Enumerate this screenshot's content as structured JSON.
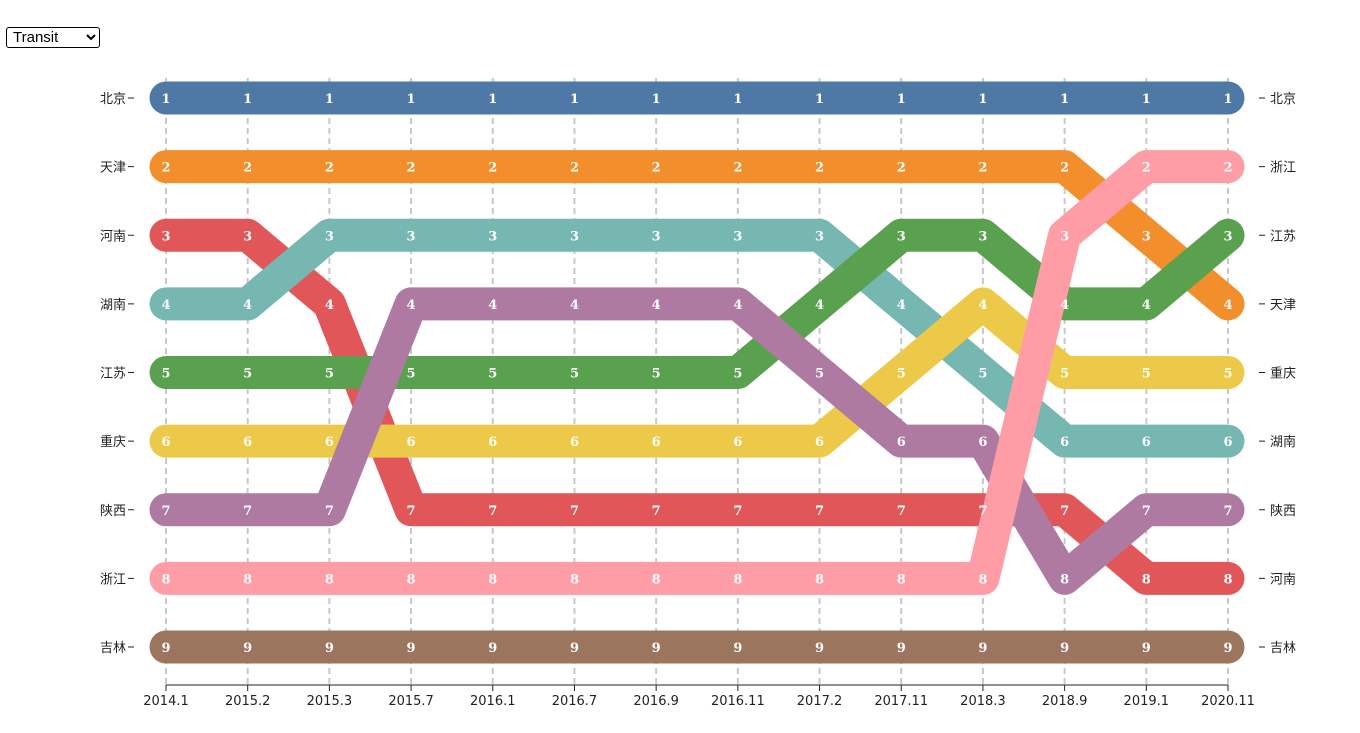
{
  "controls": {
    "mode_options": [
      "Transit"
    ],
    "mode_selected": "Transit"
  },
  "chart_data": {
    "type": "line",
    "title": "",
    "xlabel": "",
    "ylabel": "",
    "x": [
      "2014.1",
      "2015.2",
      "2015.3",
      "2015.7",
      "2016.1",
      "2016.7",
      "2016.9",
      "2016.11",
      "2017.2",
      "2017.11",
      "2018.3",
      "2018.9",
      "2019.1",
      "2020.11"
    ],
    "ylim": [
      1,
      9
    ],
    "y_inverted": true,
    "grid_x": true,
    "legend": "none",
    "series": [
      {
        "name": "北京",
        "color": "#4e79a7",
        "values": [
          1,
          1,
          1,
          1,
          1,
          1,
          1,
          1,
          1,
          1,
          1,
          1,
          1,
          1
        ]
      },
      {
        "name": "天津",
        "color": "#f28e2b",
        "values": [
          2,
          2,
          2,
          2,
          2,
          2,
          2,
          2,
          2,
          2,
          2,
          2,
          3,
          4
        ]
      },
      {
        "name": "河南",
        "color": "#e15759",
        "values": [
          3,
          3,
          4,
          7,
          7,
          7,
          7,
          7,
          7,
          7,
          7,
          7,
          8,
          8
        ]
      },
      {
        "name": "湖南",
        "color": "#76b7b2",
        "values": [
          4,
          4,
          3,
          3,
          3,
          3,
          3,
          3,
          3,
          4,
          5,
          6,
          6,
          6
        ]
      },
      {
        "name": "江苏",
        "color": "#59a14f",
        "values": [
          5,
          5,
          5,
          5,
          5,
          5,
          5,
          5,
          4,
          3,
          3,
          4,
          4,
          3
        ]
      },
      {
        "name": "重庆",
        "color": "#edc949",
        "values": [
          6,
          6,
          6,
          6,
          6,
          6,
          6,
          6,
          6,
          5,
          4,
          5,
          5,
          5
        ]
      },
      {
        "name": "陕西",
        "color": "#af7aa1",
        "values": [
          7,
          7,
          7,
          4,
          4,
          4,
          4,
          4,
          5,
          6,
          6,
          8,
          7,
          7
        ]
      },
      {
        "name": "浙江",
        "color": "#ff9da7",
        "values": [
          8,
          8,
          8,
          8,
          8,
          8,
          8,
          8,
          8,
          8,
          8,
          3,
          2,
          2
        ]
      },
      {
        "name": "吉林",
        "color": "#9c755f",
        "values": [
          9,
          9,
          9,
          9,
          9,
          9,
          9,
          9,
          9,
          9,
          9,
          9,
          9,
          9
        ]
      }
    ]
  }
}
